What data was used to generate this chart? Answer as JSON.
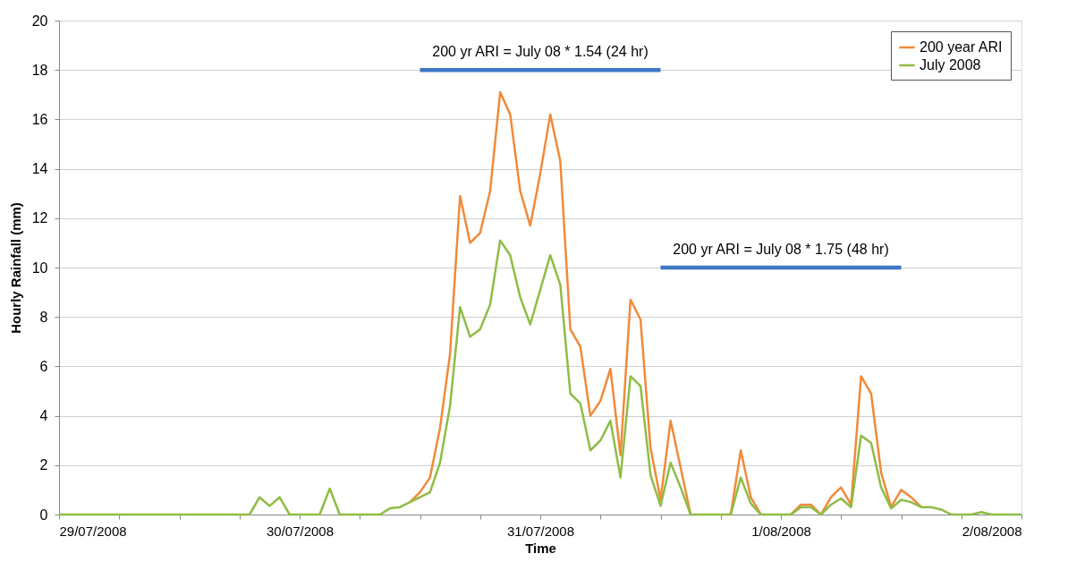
{
  "chart_data": {
    "type": "line",
    "xlabel": "Time",
    "ylabel": "Hourly Rainfall (mm)",
    "x": [
      "2008-07-29T00:00",
      "2008-07-29T01:00",
      "2008-07-29T02:00",
      "2008-07-29T03:00",
      "2008-07-29T04:00",
      "2008-07-29T05:00",
      "2008-07-29T06:00",
      "2008-07-29T07:00",
      "2008-07-29T08:00",
      "2008-07-29T09:00",
      "2008-07-29T10:00",
      "2008-07-29T11:00",
      "2008-07-29T12:00",
      "2008-07-29T13:00",
      "2008-07-29T14:00",
      "2008-07-29T15:00",
      "2008-07-29T16:00",
      "2008-07-29T17:00",
      "2008-07-29T18:00",
      "2008-07-29T19:00",
      "2008-07-29T20:00",
      "2008-07-29T21:00",
      "2008-07-29T22:00",
      "2008-07-29T23:00",
      "2008-07-30T00:00",
      "2008-07-30T01:00",
      "2008-07-30T02:00",
      "2008-07-30T03:00",
      "2008-07-30T04:00",
      "2008-07-30T05:00",
      "2008-07-30T06:00",
      "2008-07-30T07:00",
      "2008-07-30T08:00",
      "2008-07-30T09:00",
      "2008-07-30T10:00",
      "2008-07-30T11:00",
      "2008-07-30T12:00",
      "2008-07-30T13:00",
      "2008-07-30T14:00",
      "2008-07-30T15:00",
      "2008-07-30T16:00",
      "2008-07-30T17:00",
      "2008-07-30T18:00",
      "2008-07-30T19:00",
      "2008-07-30T20:00",
      "2008-07-30T21:00",
      "2008-07-30T22:00",
      "2008-07-30T23:00",
      "2008-07-31T00:00",
      "2008-07-31T01:00",
      "2008-07-31T02:00",
      "2008-07-31T03:00",
      "2008-07-31T04:00",
      "2008-07-31T05:00",
      "2008-07-31T06:00",
      "2008-07-31T07:00",
      "2008-07-31T08:00",
      "2008-07-31T09:00",
      "2008-07-31T10:00",
      "2008-07-31T11:00",
      "2008-07-31T12:00",
      "2008-07-31T13:00",
      "2008-07-31T14:00",
      "2008-07-31T15:00",
      "2008-07-31T16:00",
      "2008-07-31T17:00",
      "2008-07-31T18:00",
      "2008-07-31T19:00",
      "2008-07-31T20:00",
      "2008-07-31T21:00",
      "2008-07-31T22:00",
      "2008-07-31T23:00",
      "2008-08-01T00:00",
      "2008-08-01T01:00",
      "2008-08-01T02:00",
      "2008-08-01T03:00",
      "2008-08-01T04:00",
      "2008-08-01T05:00",
      "2008-08-01T06:00",
      "2008-08-01T07:00",
      "2008-08-01T08:00",
      "2008-08-01T09:00",
      "2008-08-01T10:00",
      "2008-08-01T11:00",
      "2008-08-01T12:00",
      "2008-08-01T13:00",
      "2008-08-01T14:00",
      "2008-08-01T15:00",
      "2008-08-01T16:00",
      "2008-08-01T17:00",
      "2008-08-01T18:00",
      "2008-08-01T19:00",
      "2008-08-01T20:00",
      "2008-08-01T21:00",
      "2008-08-01T22:00",
      "2008-08-01T23:00",
      "2008-08-02T00:00"
    ],
    "series": [
      {
        "name": "200 year ARI",
        "color": "#f08a3a",
        "values": [
          null,
          null,
          null,
          null,
          null,
          null,
          null,
          null,
          null,
          null,
          null,
          null,
          null,
          null,
          null,
          null,
          null,
          null,
          null,
          null,
          null,
          null,
          null,
          null,
          null,
          null,
          null,
          null,
          null,
          null,
          null,
          null,
          null,
          null,
          null,
          0.5,
          0.9,
          1.5,
          3.5,
          6.5,
          12.9,
          11.0,
          11.4,
          13.1,
          17.1,
          16.2,
          13.1,
          11.7,
          13.8,
          16.2,
          14.3,
          7.5,
          6.8,
          4.0,
          4.6,
          5.9,
          2.4,
          8.7,
          7.9,
          2.7,
          0.6,
          3.8,
          1.9,
          0,
          null,
          null,
          null,
          0,
          2.6,
          0.7,
          0,
          null,
          null,
          0,
          0.4,
          0.4,
          0,
          0.7,
          1.1,
          0.4,
          5.6,
          4.9,
          1.7,
          0.3,
          1.0,
          0.7,
          0.3,
          null,
          null,
          null,
          null,
          null,
          null,
          null,
          null,
          null,
          null
        ]
      },
      {
        "name": "July 2008",
        "color": "#8fbc45",
        "values": [
          0,
          0,
          0,
          0,
          0,
          0,
          0,
          0,
          0,
          0,
          0,
          0,
          0,
          0,
          0,
          0,
          0,
          0,
          0,
          0,
          0.7,
          0.35,
          0.7,
          0,
          0,
          0,
          0,
          1.05,
          0,
          0,
          0,
          0,
          0,
          0.25,
          0.3,
          0.5,
          0.7,
          0.9,
          2.1,
          4.4,
          8.4,
          7.2,
          7.5,
          8.5,
          11.1,
          10.5,
          8.8,
          7.7,
          9.1,
          10.5,
          9.3,
          4.9,
          4.5,
          2.6,
          3.0,
          3.8,
          1.5,
          5.6,
          5.2,
          1.6,
          0.35,
          2.1,
          1.1,
          0,
          0,
          0,
          0,
          0,
          1.5,
          0.45,
          0,
          0,
          0,
          0,
          0.3,
          0.3,
          0,
          0.4,
          0.65,
          0.3,
          3.2,
          2.9,
          1.1,
          0.25,
          0.6,
          0.5,
          0.3,
          0.3,
          0.2,
          0,
          0,
          0,
          0.1,
          0,
          0,
          0,
          0
        ]
      },
      {
        "type": "line",
        "color": "#3c78c4",
        "x": [
          "2008-07-30T12:00",
          "2008-07-31T12:00"
        ],
        "values": [
          18,
          18
        ]
      },
      {
        "type": "line",
        "color": "#3c78c4",
        "x": [
          "2008-07-31T12:00",
          "2008-08-01T12:00"
        ],
        "values": [
          10,
          10
        ]
      }
    ],
    "annotations": [
      "200 yr ARI = July 08 * 1.54 (24 hr)",
      "200 yr ARI = July 08 * 1.75 (48 hr)"
    ],
    "xlim": [
      "2008-07-29",
      "2008-08-02"
    ],
    "xticks": [
      {
        "value": "2008-07-29",
        "label": "29/07/2008"
      },
      {
        "value": "2008-07-29T06:00",
        "label": null
      },
      {
        "value": "2008-07-29T12:00",
        "label": null
      },
      {
        "value": "2008-07-29T18:00",
        "label": null
      },
      {
        "value": "2008-07-30",
        "label": "30/07/2008"
      },
      {
        "value": "2008-07-30T06:00",
        "label": null
      },
      {
        "value": "2008-07-30T12:00",
        "label": null
      },
      {
        "value": "2008-07-30T18:00",
        "label": null
      },
      {
        "value": "2008-07-31",
        "label": "31/07/2008"
      },
      {
        "value": "2008-07-31T06:00",
        "label": null
      },
      {
        "value": "2008-07-31T12:00",
        "label": null
      },
      {
        "value": "2008-07-31T18:00",
        "label": null
      },
      {
        "value": "2008-08-01",
        "label": "1/08/2008"
      },
      {
        "value": "2008-08-01T06:00",
        "label": null
      },
      {
        "value": "2008-08-01T12:00",
        "label": null
      },
      {
        "value": "2008-08-01T18:00",
        "label": null
      },
      {
        "value": "2008-08-02",
        "label": "2/08/2008"
      }
    ],
    "ylim": [
      0,
      20
    ],
    "yticks": [
      0,
      2,
      4,
      6,
      8,
      10,
      12,
      14,
      16,
      18,
      20
    ],
    "grid": "y",
    "legend": "top right",
    "marker": "none",
    "line_style": "solid"
  }
}
